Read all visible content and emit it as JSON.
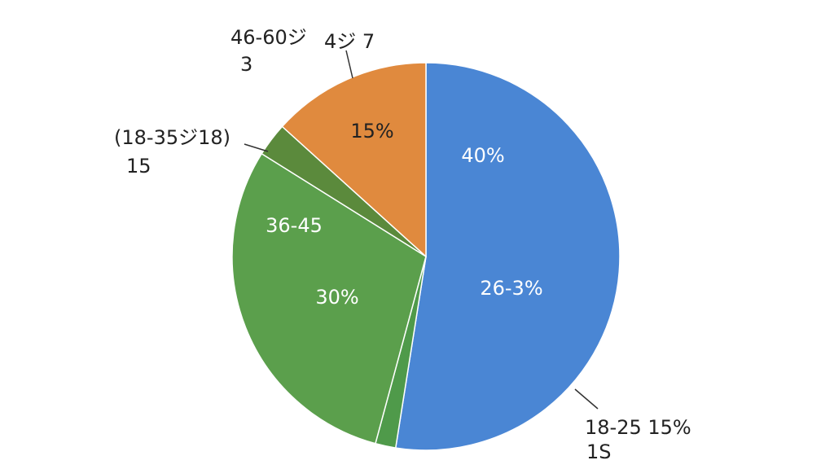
{
  "chart_data": {
    "type": "pie",
    "categories": [
      null,
      null,
      null,
      null,
      null
    ],
    "values": [
      52.5,
      1.7,
      29.7,
      2.8,
      13.3
    ],
    "colors": [
      "#4a86d4",
      "#4f9a4a",
      "#5b9f4c",
      "#5b8a3c",
      "#e08a3e"
    ],
    "annotations": [
      "46-60ジ",
      "3",
      "4ジ 7",
      "(18-35ジ18)",
      "15",
      "15%",
      "40%",
      "36-45",
      "26-3%",
      "30%",
      "18-25 15%",
      "1S"
    ]
  }
}
